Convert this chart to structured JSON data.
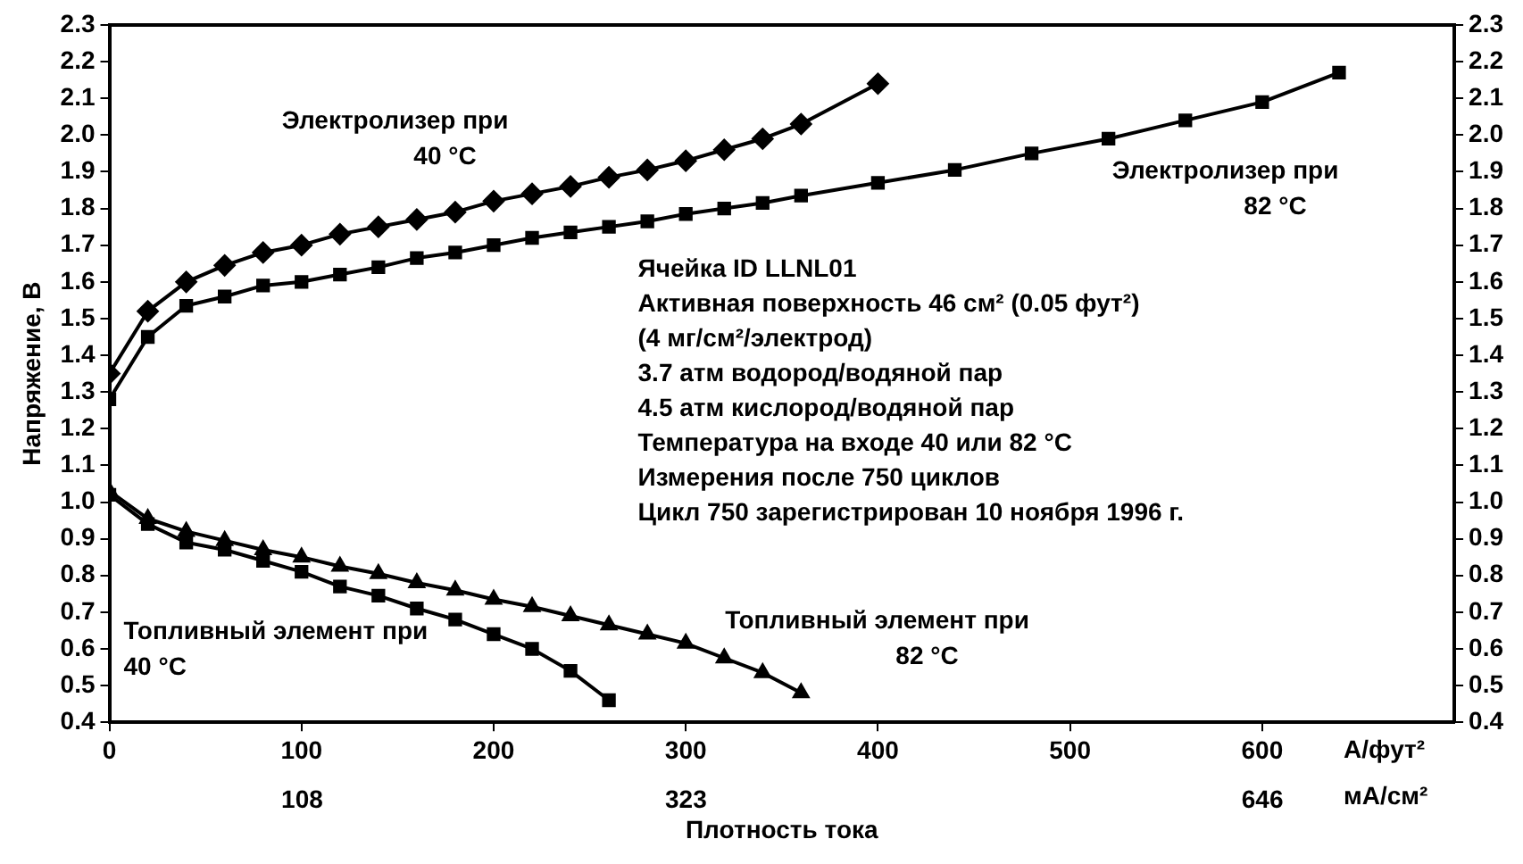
{
  "chart_data": {
    "type": "line",
    "xlabel": "Плотность тока",
    "ylabel": "Напряжение, В",
    "xlim": [
      0,
      700
    ],
    "xticks": [
      0,
      100,
      200,
      300,
      400,
      500,
      600
    ],
    "x2lim": [
      0,
      753.5
    ],
    "x2ticks": [
      {
        "value": 108,
        "label": "108"
      },
      {
        "value": 323,
        "label": "323"
      },
      {
        "value": 646,
        "label": "646"
      }
    ],
    "ylim": [
      0.4,
      2.3
    ],
    "yticks": [
      0.4,
      0.5,
      0.6,
      0.7,
      0.8,
      0.9,
      {
        "value": 1,
        "label": "1.0"
      },
      1.1,
      1.2,
      1.3,
      1.4,
      1.5,
      1.6,
      1.7,
      1.8,
      1.9,
      {
        "value": 2,
        "label": "2.0"
      },
      2.1,
      2.2,
      2.3
    ],
    "y2lim": [
      0.4,
      2.3
    ],
    "y2ticks": [
      0.4,
      0.5,
      0.6,
      0.7,
      0.8,
      0.9,
      {
        "value": 1,
        "label": "1.0"
      },
      1.1,
      1.2,
      1.3,
      1.4,
      1.5,
      1.6,
      1.7,
      1.8,
      1.9,
      {
        "value": 2,
        "label": "2.0"
      },
      2.1,
      2.2,
      2.3
    ],
    "grid": false,
    "legend": false,
    "series": [
      {
        "name": "Электролизер при 40 °C",
        "color": "#000000",
        "marker": "diamond",
        "x": [
          0,
          20,
          40,
          60,
          80,
          100,
          120,
          140,
          160,
          180,
          200,
          220,
          240,
          260,
          280,
          300,
          320,
          340,
          360,
          400
        ],
        "values": [
          1.35,
          1.52,
          1.6,
          1.645,
          1.68,
          1.7,
          1.73,
          1.75,
          1.77,
          1.79,
          1.82,
          1.84,
          1.86,
          1.885,
          1.905,
          1.93,
          1.96,
          1.99,
          2.03,
          2.14
        ]
      },
      {
        "name": "Электролизер при 82 °C",
        "color": "#000000",
        "marker": "square",
        "x": [
          0,
          20,
          40,
          60,
          80,
          100,
          120,
          140,
          160,
          180,
          200,
          220,
          240,
          260,
          280,
          300,
          320,
          340,
          360,
          400,
          440,
          480,
          520,
          560,
          600,
          640
        ],
        "values": [
          1.28,
          1.45,
          1.535,
          1.56,
          1.59,
          1.6,
          1.62,
          1.64,
          1.665,
          1.68,
          1.7,
          1.72,
          1.735,
          1.75,
          1.765,
          1.785,
          1.8,
          1.815,
          1.835,
          1.87,
          1.905,
          1.95,
          1.99,
          2.04,
          2.09,
          2.17
        ]
      },
      {
        "name": "Топливный элемент при 40 °C",
        "color": "#000000",
        "marker": "square",
        "x": [
          0,
          20,
          40,
          60,
          80,
          100,
          120,
          140,
          160,
          180,
          200,
          220,
          240,
          260
        ],
        "values": [
          1.02,
          0.94,
          0.89,
          0.87,
          0.84,
          0.81,
          0.77,
          0.745,
          0.71,
          0.68,
          0.64,
          0.6,
          0.54,
          0.46
        ]
      },
      {
        "name": "Топливный элемент при 82 °C",
        "color": "#000000",
        "marker": "triangle",
        "x": [
          0,
          20,
          40,
          60,
          80,
          100,
          120,
          140,
          160,
          180,
          200,
          220,
          240,
          260,
          280,
          300,
          320,
          340,
          360
        ],
        "values": [
          1.03,
          0.955,
          0.92,
          0.895,
          0.87,
          0.85,
          0.825,
          0.805,
          0.78,
          0.76,
          0.735,
          0.715,
          0.69,
          0.665,
          0.64,
          0.615,
          0.575,
          0.535,
          0.48
        ]
      }
    ],
    "annotations": [
      "Ячейка ID LLNL01",
      "Активная поверхность 46 см² (0.05 фут²)",
      "(4 мг/см²/электрод)",
      "3.7 атм водород/водяной пар",
      "4.5 атм кислород/водяной пар",
      "Температура на входе 40 или 82 °C",
      "Измерения после 750 циклов",
      "Цикл 750 зарегистрирован 10 ноября 1996 г.",
      "А/фут²",
      "мА/см²"
    ]
  }
}
